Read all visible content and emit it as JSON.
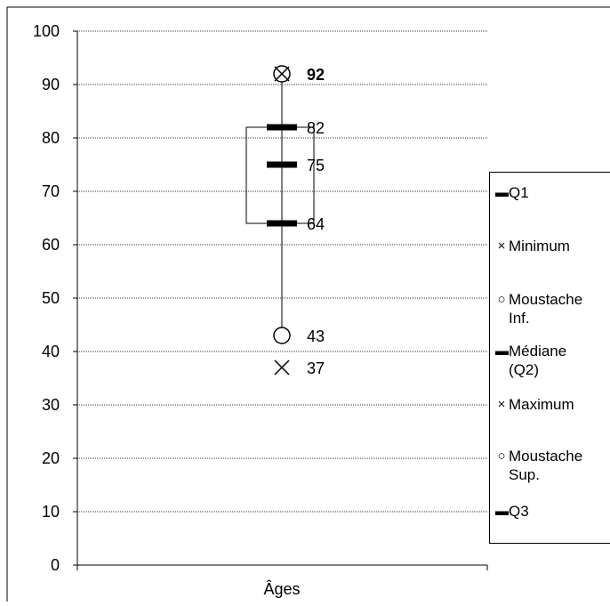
{
  "chart_data": {
    "type": "box",
    "categories": [
      "Âges"
    ],
    "xlabel": "Âges",
    "ylabel": "",
    "title": "",
    "ylim": [
      0,
      100
    ],
    "yticks": [
      0,
      10,
      20,
      30,
      40,
      50,
      60,
      70,
      80,
      90,
      100
    ],
    "grid": true,
    "legend_position": "right",
    "stats": {
      "minimum": 37,
      "whisker_low": 43,
      "q1": 64,
      "median": 75,
      "q3": 82,
      "whisker_high": 92,
      "maximum": 92
    },
    "data_labels": [
      "92",
      "82",
      "75",
      "64",
      "43",
      "37"
    ],
    "series": [
      {
        "name": "Q1",
        "marker": "dash",
        "value": 64
      },
      {
        "name": "Minimum",
        "marker": "x",
        "value": 37
      },
      {
        "name": "Moustache Inf.",
        "marker": "circle",
        "value": 43
      },
      {
        "name": "Médiane (Q2)",
        "marker": "dash",
        "value": 75
      },
      {
        "name": "Maximum",
        "marker": "x",
        "value": 92
      },
      {
        "name": "Moustache Sup.",
        "marker": "circle",
        "value": 92
      },
      {
        "name": "Q3",
        "marker": "dash",
        "value": 82
      }
    ]
  },
  "legend": {
    "items": [
      {
        "label": "Q1",
        "icon": "dash-icon"
      },
      {
        "label": "Minimum",
        "icon": "x-icon"
      },
      {
        "label": "Moustache\nInf.",
        "icon": "circle-icon"
      },
      {
        "label": "Médiane\n(Q2)",
        "icon": "dash-icon"
      },
      {
        "label": "Maximum",
        "icon": "x-icon"
      },
      {
        "label": "Moustache\nSup.",
        "icon": "circle-icon"
      },
      {
        "label": "Q3",
        "icon": "dash-icon"
      }
    ]
  }
}
